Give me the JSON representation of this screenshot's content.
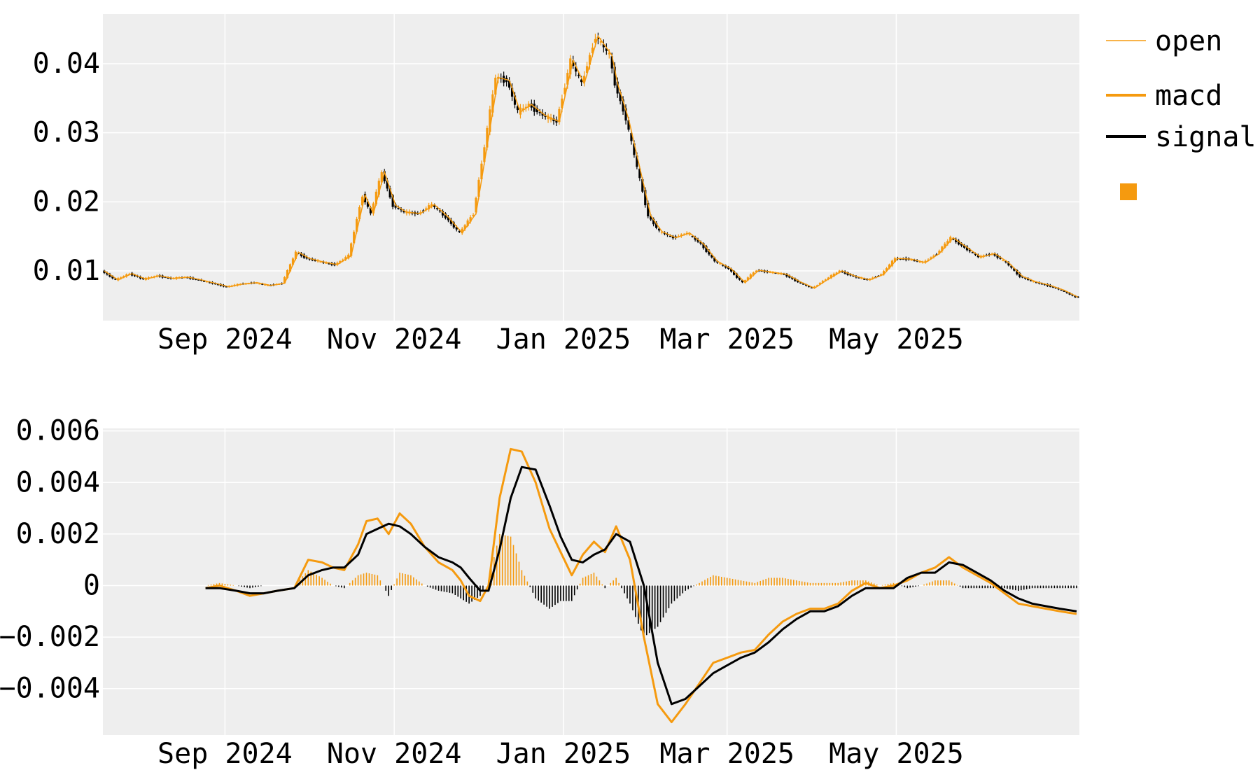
{
  "chart_data": [
    {
      "type": "candlestick",
      "panel": "price",
      "grid": true,
      "ylim": [
        0.0028,
        0.0472
      ],
      "ytick_labels": [
        "0.01",
        "0.02",
        "0.03",
        "0.04"
      ],
      "yticks": [
        0.01,
        0.02,
        0.03,
        0.04
      ],
      "xlim": [
        "2024-07-19",
        "2025-07-06"
      ],
      "xtick_labels": [
        "Sep 2024",
        "Nov 2024",
        "Jan 2025",
        "Mar 2025",
        "May 2025"
      ],
      "xticks": [
        "2024-09-01",
        "2024-11-01",
        "2025-01-01",
        "2025-03-01",
        "2025-05-01"
      ],
      "series": [
        {
          "name": "open",
          "color": "#f59a0f",
          "x": [
            "2024-07-19",
            "2024-07-24",
            "2024-07-29",
            "2024-08-03",
            "2024-08-08",
            "2024-08-13",
            "2024-08-18",
            "2024-08-23",
            "2024-08-28",
            "2024-09-02",
            "2024-09-07",
            "2024-09-12",
            "2024-09-17",
            "2024-09-22",
            "2024-09-27",
            "2024-10-01",
            "2024-10-06",
            "2024-10-11",
            "2024-10-16",
            "2024-10-21",
            "2024-10-24",
            "2024-10-28",
            "2024-11-01",
            "2024-11-05",
            "2024-11-10",
            "2024-11-15",
            "2024-11-20",
            "2024-11-25",
            "2024-11-30",
            "2024-12-05",
            "2024-12-08",
            "2024-12-12",
            "2024-12-16",
            "2024-12-20",
            "2024-12-25",
            "2024-12-30",
            "2025-01-04",
            "2025-01-08",
            "2025-01-13",
            "2025-01-18",
            "2025-01-20",
            "2025-01-24",
            "2025-01-28",
            "2025-02-01",
            "2025-02-05",
            "2025-02-10",
            "2025-02-15",
            "2025-02-20",
            "2025-02-25",
            "2025-03-02",
            "2025-03-07",
            "2025-03-12",
            "2025-03-17",
            "2025-03-22",
            "2025-03-27",
            "2025-04-01",
            "2025-04-06",
            "2025-04-11",
            "2025-04-16",
            "2025-04-21",
            "2025-04-26",
            "2025-05-01",
            "2025-05-06",
            "2025-05-11",
            "2025-05-16",
            "2025-05-21",
            "2025-05-26",
            "2025-05-31",
            "2025-06-05",
            "2025-06-10",
            "2025-06-15",
            "2025-06-20",
            "2025-06-25",
            "2025-06-30",
            "2025-07-05"
          ],
          "values": [
            0.01,
            0.0087,
            0.0096,
            0.0088,
            0.0093,
            0.0089,
            0.0091,
            0.0087,
            0.0082,
            0.0077,
            0.0081,
            0.0083,
            0.0079,
            0.0082,
            0.0127,
            0.0118,
            0.0113,
            0.0109,
            0.0122,
            0.021,
            0.0183,
            0.0243,
            0.0195,
            0.0185,
            0.0183,
            0.0196,
            0.0178,
            0.0155,
            0.0183,
            0.0305,
            0.038,
            0.0376,
            0.033,
            0.0341,
            0.0325,
            0.0316,
            0.0405,
            0.0371,
            0.044,
            0.0412,
            0.0372,
            0.032,
            0.025,
            0.018,
            0.0157,
            0.0148,
            0.0155,
            0.0139,
            0.0114,
            0.0103,
            0.0083,
            0.0101,
            0.0098,
            0.0095,
            0.0084,
            0.0075,
            0.0088,
            0.01,
            0.0092,
            0.0087,
            0.0095,
            0.0118,
            0.0117,
            0.0112,
            0.0125,
            0.0148,
            0.0134,
            0.012,
            0.0125,
            0.0112,
            0.0092,
            0.0084,
            0.0079,
            0.0072,
            0.0062
          ]
        }
      ]
    },
    {
      "type": "line",
      "panel": "indicator",
      "grid": true,
      "ylim": [
        -0.0058,
        0.0061
      ],
      "ytick_labels": [
        "0.006",
        "0.004",
        "0.002",
        "0",
        "−0.002",
        "−0.004"
      ],
      "yticks": [
        0.006,
        0.004,
        0.002,
        0,
        -0.002,
        -0.004
      ],
      "xlim": [
        "2024-07-19",
        "2025-07-06"
      ],
      "xtick_labels": [
        "Sep 2024",
        "Nov 2024",
        "Jan 2025",
        "Mar 2025",
        "May 2025"
      ],
      "xticks": [
        "2024-09-01",
        "2024-11-01",
        "2025-01-01",
        "2025-03-01",
        "2025-05-01"
      ],
      "x": [
        "2024-08-25",
        "2024-08-30",
        "2024-09-05",
        "2024-09-10",
        "2024-09-15",
        "2024-09-20",
        "2024-09-26",
        "2024-10-01",
        "2024-10-06",
        "2024-10-10",
        "2024-10-14",
        "2024-10-19",
        "2024-10-22",
        "2024-10-26",
        "2024-10-30",
        "2024-11-03",
        "2024-11-07",
        "2024-11-12",
        "2024-11-17",
        "2024-11-22",
        "2024-11-25",
        "2024-11-28",
        "2024-12-02",
        "2024-12-05",
        "2024-12-09",
        "2024-12-13",
        "2024-12-17",
        "2024-12-22",
        "2024-12-27",
        "2024-12-31",
        "2025-01-04",
        "2025-01-08",
        "2025-01-12",
        "2025-01-16",
        "2025-01-20",
        "2025-01-25",
        "2025-01-30",
        "2025-02-04",
        "2025-02-09",
        "2025-02-14",
        "2025-02-19",
        "2025-02-24",
        "2025-03-01",
        "2025-03-06",
        "2025-03-11",
        "2025-03-16",
        "2025-03-21",
        "2025-03-26",
        "2025-03-31",
        "2025-04-05",
        "2025-04-10",
        "2025-04-15",
        "2025-04-20",
        "2025-04-25",
        "2025-04-30",
        "2025-05-05",
        "2025-05-10",
        "2025-05-15",
        "2025-05-20",
        "2025-05-25",
        "2025-05-30",
        "2025-06-04",
        "2025-06-09",
        "2025-06-14",
        "2025-06-19",
        "2025-06-24",
        "2025-06-29",
        "2025-07-05"
      ],
      "series": [
        {
          "name": "macd",
          "color": "#f59a0f",
          "values": [
            -0.0001,
            0.0,
            -0.0002,
            -0.0004,
            -0.0003,
            -0.0002,
            -0.0001,
            0.001,
            0.0009,
            0.0007,
            0.0006,
            0.0016,
            0.0025,
            0.0026,
            0.002,
            0.0028,
            0.0024,
            0.0015,
            0.0009,
            0.0006,
            0.0002,
            -0.0004,
            -0.0006,
            0.0,
            0.0034,
            0.0053,
            0.0052,
            0.004,
            0.0022,
            0.0013,
            0.0004,
            0.0012,
            0.0017,
            0.0013,
            0.0023,
            0.001,
            -0.002,
            -0.0046,
            -0.0053,
            -0.0046,
            -0.0038,
            -0.003,
            -0.0028,
            -0.0026,
            -0.0025,
            -0.0019,
            -0.0014,
            -0.0011,
            -0.0009,
            -0.0009,
            -0.0007,
            -0.0002,
            0.0001,
            -0.0001,
            0.0,
            0.0002,
            0.0005,
            0.0007,
            0.0011,
            0.0007,
            0.0004,
            0.0001,
            -0.0003,
            -0.0007,
            -0.0008,
            -0.0009,
            -0.001,
            -0.0011
          ]
        },
        {
          "name": "signal",
          "color": "#000000",
          "values": [
            -0.0001,
            -0.0001,
            -0.0002,
            -0.0003,
            -0.0003,
            -0.0002,
            -0.0001,
            0.0004,
            0.0006,
            0.0007,
            0.0007,
            0.0012,
            0.002,
            0.0022,
            0.0024,
            0.0023,
            0.002,
            0.0015,
            0.0011,
            0.0009,
            0.0007,
            0.0003,
            -0.0002,
            -0.0002,
            0.0014,
            0.0034,
            0.0046,
            0.0045,
            0.0031,
            0.0019,
            0.001,
            0.0009,
            0.0012,
            0.0014,
            0.002,
            0.0017,
            0.0,
            -0.003,
            -0.0046,
            -0.0044,
            -0.0039,
            -0.0034,
            -0.0031,
            -0.0028,
            -0.0026,
            -0.0022,
            -0.0017,
            -0.0013,
            -0.001,
            -0.001,
            -0.0008,
            -0.0004,
            -0.0001,
            -0.0001,
            -0.0001,
            0.0003,
            0.0005,
            0.0005,
            0.0009,
            0.0008,
            0.0005,
            0.0002,
            -0.0002,
            -0.0005,
            -0.0007,
            -0.0008,
            -0.0009,
            -0.001
          ]
        }
      ]
    }
  ],
  "legend": {
    "placement": "right",
    "items": [
      {
        "label": "open",
        "color": "#f59a0f",
        "kind": "thin-line"
      },
      {
        "label": "macd",
        "color": "#f59a0f",
        "kind": "line"
      },
      {
        "label": "signal",
        "color": "#000000",
        "kind": "line"
      },
      {
        "label": "",
        "color": "#f59a0f",
        "kind": "square"
      }
    ]
  },
  "colors": {
    "panel_bg": "#eeeeee",
    "grid": "#ffffff",
    "up": "#f59a0f",
    "down": "#000000"
  }
}
